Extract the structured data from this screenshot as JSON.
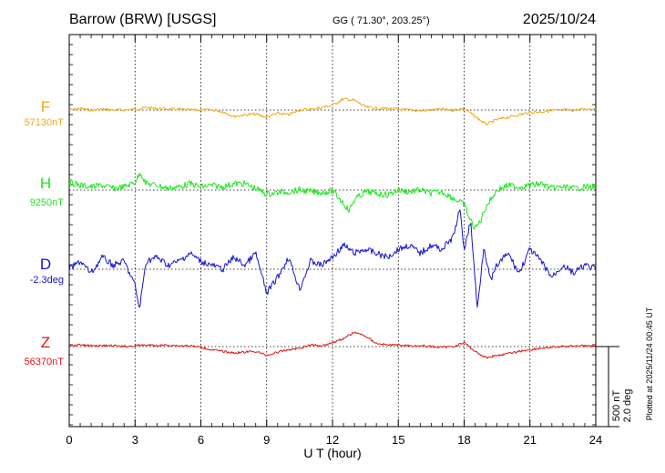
{
  "header": {
    "station": "Barrow (BRW)  [USGS]",
    "coords": "GG ( 71.30°, 203.25°)",
    "date": "2025/10/24"
  },
  "footnote": "Plotted at 2025/11/24 00:45 UT",
  "scale_bar": {
    "line1": "500 nT",
    "line2": "2.0 deg"
  },
  "chart_data": {
    "type": "line",
    "title": "Barrow (BRW)  [USGS]",
    "xlabel": "U T (hour)",
    "xlim": [
      0,
      24
    ],
    "xticks": [
      "0",
      "3",
      "6",
      "9",
      "12",
      "15",
      "18",
      "21",
      "24"
    ],
    "series": [
      {
        "name": "F",
        "baseline_label": "57130nT",
        "color": "#f0a818",
        "unit": "nT",
        "x": [
          0,
          0.5,
          1,
          1.5,
          2,
          2.5,
          3,
          3.5,
          4,
          4.5,
          5,
          5.5,
          6,
          6.5,
          7,
          7.5,
          8,
          8.5,
          9,
          9.5,
          10,
          10.5,
          11,
          11.5,
          12,
          12.5,
          13,
          13.5,
          14,
          14.5,
          15,
          15.5,
          16,
          16.5,
          17,
          17.5,
          18,
          18.5,
          19,
          19.5,
          20,
          20.5,
          21,
          21.5,
          22,
          22.5,
          23,
          23.5,
          24
        ],
        "values": [
          0,
          10,
          0,
          5,
          0,
          0,
          5,
          15,
          10,
          5,
          5,
          0,
          0,
          0,
          -10,
          -40,
          -30,
          -25,
          -45,
          -20,
          -30,
          0,
          5,
          15,
          30,
          70,
          60,
          20,
          10,
          10,
          5,
          0,
          -5,
          0,
          5,
          0,
          10,
          -40,
          -90,
          -60,
          -45,
          -30,
          -15,
          -10,
          -5,
          0,
          0,
          5,
          10
        ]
      },
      {
        "name": "H",
        "baseline_label": "9250nT",
        "color": "#1ee61e",
        "unit": "nT",
        "x": [
          0,
          0.5,
          1,
          1.5,
          2,
          2.5,
          3,
          3.25,
          3.5,
          4,
          4.5,
          5,
          5.5,
          6,
          6.5,
          7,
          7.5,
          8,
          8.5,
          9,
          9.5,
          10,
          10.5,
          11,
          11.5,
          12,
          12.5,
          12.75,
          13,
          13.5,
          14,
          14.5,
          15,
          15.5,
          16,
          16.5,
          17,
          17.5,
          18,
          18.25,
          18.5,
          18.75,
          19,
          19.5,
          20,
          20.5,
          21,
          21.5,
          22,
          22.5,
          23,
          23.5,
          24
        ],
        "values": [
          50,
          30,
          20,
          30,
          10,
          20,
          50,
          110,
          40,
          30,
          10,
          20,
          40,
          20,
          30,
          20,
          40,
          40,
          10,
          -25,
          -15,
          -10,
          0,
          -10,
          -15,
          -5,
          -80,
          -130,
          -60,
          -10,
          -20,
          -30,
          0,
          -10,
          0,
          -20,
          -10,
          -50,
          -90,
          -180,
          -240,
          -190,
          -100,
          0,
          30,
          20,
          30,
          40,
          10,
          20,
          10,
          20,
          20
        ]
      },
      {
        "name": "D",
        "baseline_label": "-2.3deg",
        "color": "#1414d2",
        "unit": "deg",
        "x": [
          0,
          0.5,
          1,
          1.5,
          2,
          2.5,
          3,
          3.2,
          3.5,
          4,
          4.5,
          5,
          5.5,
          6,
          6.5,
          7,
          7.5,
          8,
          8.5,
          9,
          9.5,
          10,
          10.5,
          11,
          11.5,
          12,
          12.5,
          13,
          13.5,
          14,
          14.5,
          15,
          15.5,
          16,
          16.5,
          17,
          17.5,
          17.8,
          18,
          18.3,
          18.6,
          18.9,
          19.2,
          19.5,
          20,
          20.5,
          21,
          21.5,
          22,
          22.5,
          23,
          23.5,
          24
        ],
        "values": [
          0,
          0.2,
          -0.1,
          0.3,
          0.1,
          0.2,
          -0.4,
          -1.0,
          0.2,
          0.3,
          0.1,
          0.2,
          0.4,
          0.2,
          0.1,
          0,
          0.3,
          0.1,
          0.4,
          -0.6,
          -0.2,
          0.3,
          -0.5,
          0.2,
          0.1,
          0.3,
          0.6,
          0.4,
          0.5,
          0.4,
          0.3,
          0.5,
          0.6,
          0.4,
          0.6,
          0.5,
          0.8,
          1.5,
          0.5,
          1.2,
          -1.0,
          0.6,
          -0.3,
          0.1,
          0.4,
          -0.1,
          0.5,
          0.2,
          -0.2,
          0.1,
          -0.1,
          0.1,
          0
        ]
      },
      {
        "name": "Z",
        "baseline_label": "56370nT",
        "color": "#e01414",
        "unit": "nT",
        "x": [
          0,
          0.5,
          1,
          1.5,
          2,
          2.5,
          3,
          3.5,
          4,
          4.5,
          5,
          5.5,
          6,
          6.5,
          7,
          7.5,
          8,
          8.5,
          9,
          9.5,
          10,
          10.5,
          11,
          11.5,
          12,
          12.5,
          13,
          13.5,
          14,
          14.5,
          15,
          15.5,
          16,
          16.5,
          17,
          17.5,
          18,
          18.5,
          19,
          19.5,
          20,
          20.5,
          21,
          21.5,
          22,
          22.5,
          23,
          23.5,
          24
        ],
        "values": [
          5,
          10,
          5,
          5,
          5,
          0,
          5,
          10,
          5,
          10,
          5,
          5,
          -5,
          -20,
          -30,
          -40,
          -35,
          -30,
          -55,
          -35,
          -20,
          -10,
          10,
          5,
          25,
          50,
          90,
          65,
          20,
          10,
          10,
          5,
          5,
          0,
          -5,
          0,
          25,
          -30,
          -70,
          -55,
          -45,
          -30,
          -20,
          -10,
          -5,
          0,
          5,
          5,
          0
        ]
      }
    ],
    "scale": {
      "nT": 500,
      "deg": 2.0
    }
  }
}
